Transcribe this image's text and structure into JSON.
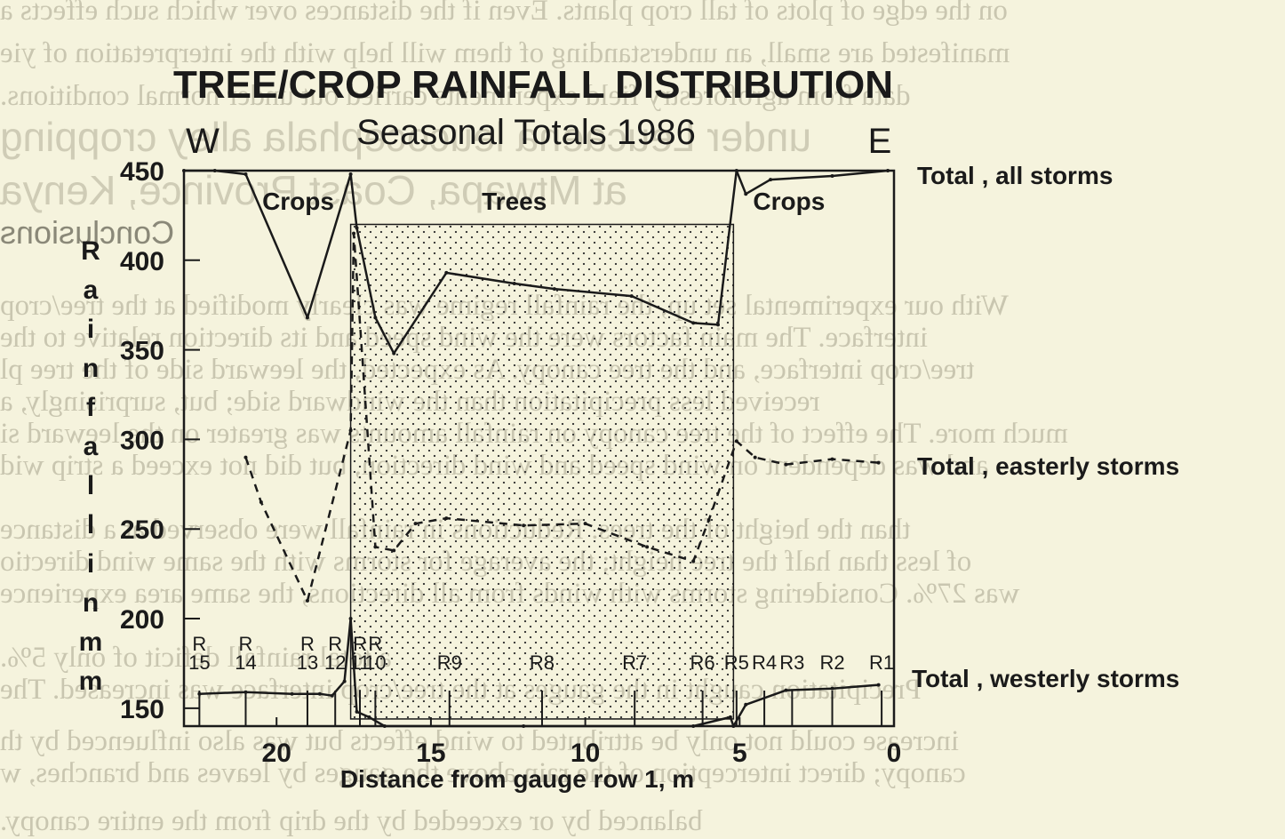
{
  "chart_data": {
    "type": "line",
    "title": "TREE/CROP RAINFALL DISTRIBUTION",
    "subtitle": "Seasonal Totals 1986",
    "xlabel": "Distance from gauge row 1, m",
    "ylabel": "Rainfall in mm",
    "xlim": [
      0,
      23
    ],
    "ylim": [
      140,
      450
    ],
    "x_reversed": true,
    "x_ticks": [
      20,
      15,
      10,
      5,
      0
    ],
    "y_ticks": [
      150,
      200,
      250,
      300,
      350,
      400,
      450
    ],
    "x_tick_labels": [
      "20",
      "15",
      "10",
      "5",
      "0"
    ],
    "y_tick_labels": [
      "150",
      "200",
      "250",
      "300",
      "350",
      "400",
      "450"
    ],
    "direction_labels": {
      "west": "W",
      "east": "E"
    },
    "zone_labels": [
      {
        "label": "Crops",
        "x": 19.3
      },
      {
        "label": "Trees",
        "x": 12.3
      },
      {
        "label": "Crops",
        "x": 3.4
      }
    ],
    "tree_zone": {
      "from": 17.6,
      "to": 5.2
    },
    "gauge_rows": [
      {
        "label": "R",
        "number": "15",
        "x": 22.5
      },
      {
        "label": "R",
        "number": "14",
        "x": 21.0
      },
      {
        "label": "R",
        "number": "13",
        "x": 19.0
      },
      {
        "label": "R",
        "number": "12",
        "x": 18.1
      },
      {
        "label": "R",
        "number": "11",
        "x": 17.3
      },
      {
        "label": "R",
        "number": "10",
        "x": 16.8
      },
      {
        "label": "",
        "number": "R9",
        "x": 14.4
      },
      {
        "label": "",
        "number": "R8",
        "x": 11.4
      },
      {
        "label": "",
        "number": "R7",
        "x": 8.4
      },
      {
        "label": "",
        "number": "R6",
        "x": 6.2
      },
      {
        "label": "",
        "number": "R5",
        "x": 5.1
      },
      {
        "label": "",
        "number": "R4",
        "x": 4.2
      },
      {
        "label": "",
        "number": "R3",
        "x": 3.3
      },
      {
        "label": "",
        "number": "R2",
        "x": 2.0
      },
      {
        "label": "",
        "number": "R1",
        "x": 0.4
      }
    ],
    "series": [
      {
        "name": "Total, all storms",
        "style": "solid",
        "x": [
          23.0,
          22.0,
          21.0,
          19.0,
          17.6,
          17.4,
          16.8,
          16.2,
          14.5,
          12.3,
          11.0,
          8.5,
          6.5,
          5.7,
          5.1,
          4.8,
          4.0,
          2.0,
          0.2
        ],
        "y": [
          450,
          450,
          448,
          368,
          448,
          418,
          368,
          348,
          393,
          387,
          384,
          380,
          365,
          364,
          450,
          437,
          445,
          447,
          450
        ]
      },
      {
        "name": "Total, easterly storms",
        "style": "dashed",
        "x": [
          21.0,
          20.5,
          19.0,
          17.6,
          17.5,
          16.8,
          16.2,
          15.5,
          14.5,
          12.0,
          10.0,
          8.0,
          6.5,
          6.0,
          5.1,
          4.5,
          3.5,
          2.0,
          0.5
        ],
        "y": [
          290,
          265,
          210,
          305,
          415,
          240,
          238,
          253,
          256,
          252,
          253,
          240,
          232,
          255,
          299,
          290,
          286,
          289,
          287
        ]
      },
      {
        "name": "Total, westerly storms",
        "style": "solid",
        "x": [
          22.5,
          21.0,
          19.5,
          18.6,
          18.2,
          17.8,
          17.6,
          17.4,
          17.0,
          16.5,
          12.0,
          6.5,
          5.3,
          5.2,
          4.8,
          3.5,
          2.0,
          0.5
        ],
        "y": [
          158,
          159,
          158,
          158,
          157,
          165,
          200,
          148,
          145,
          140,
          140,
          140,
          145,
          140,
          152,
          160,
          161,
          163
        ]
      }
    ]
  },
  "series_labels": {
    "all": "Total , all storms",
    "easterly": "Total , easterly storms",
    "westerly": "Total , westerly storms"
  },
  "bleed_through": {
    "lines": [
      "on the edge of plots of tall crop plants. Even if the distances over which such effects a",
      "manifested are small, an understanding of them will help with the interpretation of yie",
      "data from agroforestry field experiments carried out under normal conditions.",
      "under Leucaena leucocephala alley cropping",
      "at Mtwapa, Coast Province, Kenya",
      "Conclusions",
      "With our experimental set up, the rainfall regime was clearly modified at the tree/crop",
      "interface. The main factors were the wind speed and its direction relative to the",
      "tree/crop interface, and the tree canopy. As expected, the leeward side of the tree pl",
      "received less precipitation than the windward side; but, surprisingly, a",
      "much more. The effect of the tree canopy on rainfall amounts was greater on the leeward si",
      "and was dependent on wind speed and wind direction, but did not exceed a strip wid",
      "than the height of the trees. Reductions in rainfall were observed at a distance",
      "of less than half the tree height; the average for storms with the same wind directio",
      "was 27%. Considering storms with winds from all directions, the same area experience",
      "a total rainfall deficit of only 5%.",
      "Precipitation caught in the gauges at the tree/crop interface was increased. The",
      "increase could not only be attributed to wind effects but was also influenced by th",
      "canopy; direct interception of the rain above the gauges by leaves and branches, w",
      "balanced by or exceeded by the drip from the entire canopy."
    ]
  }
}
